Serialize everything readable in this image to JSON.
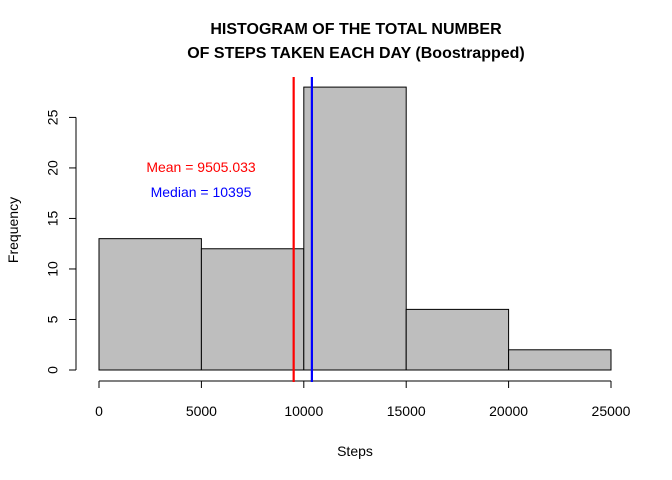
{
  "chart_data": {
    "type": "bar",
    "title_lines": [
      "HISTOGRAM OF THE TOTAL NUMBER",
      "OF STEPS TAKEN EACH DAY (Boostrapped)"
    ],
    "xlabel": "Steps",
    "ylabel": "Frequency",
    "bins": [
      {
        "start": 0,
        "end": 5000,
        "count": 13
      },
      {
        "start": 5000,
        "end": 10000,
        "count": 12
      },
      {
        "start": 10000,
        "end": 15000,
        "count": 28
      },
      {
        "start": 15000,
        "end": 20000,
        "count": 6
      },
      {
        "start": 20000,
        "end": 25000,
        "count": 2
      }
    ],
    "bar_color": "#bebebe",
    "xlim": [
      0,
      25000
    ],
    "ylim": [
      0,
      29
    ],
    "xticks": [
      0,
      5000,
      10000,
      15000,
      20000,
      25000
    ],
    "yticks": [
      0,
      5,
      10,
      15,
      20,
      25
    ],
    "grid": false,
    "vlines": [
      {
        "name": "Mean",
        "x": 9505.033,
        "color": "#ff0000",
        "label": "Mean = 9505.033"
      },
      {
        "name": "Median",
        "x": 10395,
        "color": "#0000ff",
        "label": "Median = 10395"
      }
    ]
  }
}
